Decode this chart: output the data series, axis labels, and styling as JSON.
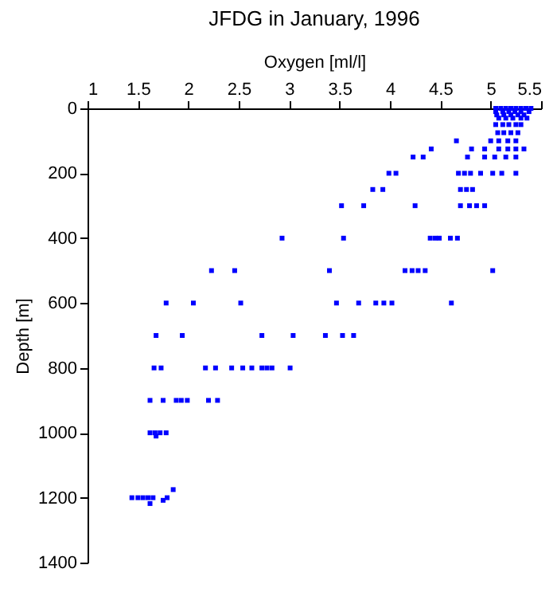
{
  "chart_data": {
    "type": "scatter",
    "title": "JFDG in January, 1996",
    "xlabel": "Oxygen [ml/l]",
    "ylabel": "Depth [m]",
    "xlim": [
      1,
      5.5
    ],
    "xticks": [
      1,
      1.5,
      2,
      2.5,
      3,
      3.5,
      4,
      4.5,
      5,
      5.5
    ],
    "ylim": [
      1400,
      0
    ],
    "yticks": [
      0,
      200,
      400,
      600,
      800,
      1000,
      1200,
      1400
    ],
    "grid": false,
    "marker": "square",
    "series": [
      {
        "color": "#0000ff",
        "x": [
          5.05,
          5.1,
          5.15,
          5.2,
          5.25,
          5.3,
          5.35,
          5.4,
          5.05,
          5.12,
          5.18,
          5.24,
          5.3,
          5.38,
          5.06,
          5.13,
          5.2,
          5.27,
          5.33,
          5.08,
          5.15,
          5.22,
          5.3,
          5.36,
          5.05,
          5.12,
          5.18,
          5.25,
          5.3,
          5.07,
          5.13,
          5.2,
          5.27,
          4.66,
          5.0,
          5.08,
          5.17,
          5.25,
          4.41,
          4.81,
          4.94,
          5.08,
          5.17,
          5.25,
          5.33,
          4.23,
          4.33,
          4.77,
          4.94,
          5.04,
          5.15,
          5.25,
          3.99,
          4.06,
          4.68,
          4.74,
          4.8,
          4.9,
          5.02,
          5.11,
          5.25,
          3.83,
          3.93,
          4.7,
          4.76,
          4.82,
          3.52,
          3.74,
          4.25,
          4.7,
          4.79,
          4.86,
          4.94,
          2.93,
          3.54,
          4.4,
          4.45,
          4.49,
          4.6,
          4.67,
          2.23,
          2.46,
          3.4,
          4.15,
          4.22,
          4.28,
          4.35,
          5.02,
          1.78,
          2.05,
          2.52,
          3.47,
          3.69,
          3.86,
          3.94,
          4.02,
          4.61,
          1.68,
          1.94,
          2.73,
          3.04,
          3.36,
          3.53,
          3.64,
          1.66,
          1.73,
          2.17,
          2.27,
          2.43,
          2.54,
          2.63,
          2.73,
          2.78,
          2.83,
          3.01,
          1.62,
          1.75,
          1.88,
          1.93,
          1.99,
          2.2,
          2.29,
          1.62,
          1.67,
          1.72,
          1.78,
          1.68,
          1.44,
          1.5,
          1.55,
          1.6,
          1.65,
          1.62,
          1.75,
          1.79,
          1.85
        ],
        "values": [
          0,
          0,
          0,
          0,
          0,
          0,
          0,
          0,
          10,
          10,
          10,
          10,
          10,
          10,
          20,
          20,
          20,
          20,
          20,
          30,
          30,
          30,
          30,
          30,
          50,
          50,
          50,
          50,
          50,
          75,
          75,
          75,
          75,
          100,
          100,
          100,
          100,
          100,
          125,
          125,
          125,
          125,
          125,
          125,
          125,
          150,
          150,
          150,
          150,
          150,
          150,
          150,
          200,
          200,
          200,
          200,
          200,
          200,
          200,
          200,
          200,
          250,
          250,
          250,
          250,
          250,
          300,
          300,
          300,
          300,
          300,
          300,
          300,
          400,
          400,
          400,
          400,
          400,
          400,
          400,
          500,
          500,
          500,
          500,
          500,
          500,
          500,
          500,
          600,
          600,
          600,
          600,
          600,
          600,
          600,
          600,
          600,
          700,
          700,
          700,
          700,
          700,
          700,
          700,
          800,
          800,
          800,
          800,
          800,
          800,
          800,
          800,
          800,
          800,
          800,
          900,
          900,
          900,
          900,
          900,
          900,
          900,
          1000,
          1000,
          1000,
          1000,
          1010,
          1200,
          1200,
          1200,
          1200,
          1200,
          1218,
          1208,
          1200,
          1175
        ]
      }
    ]
  }
}
